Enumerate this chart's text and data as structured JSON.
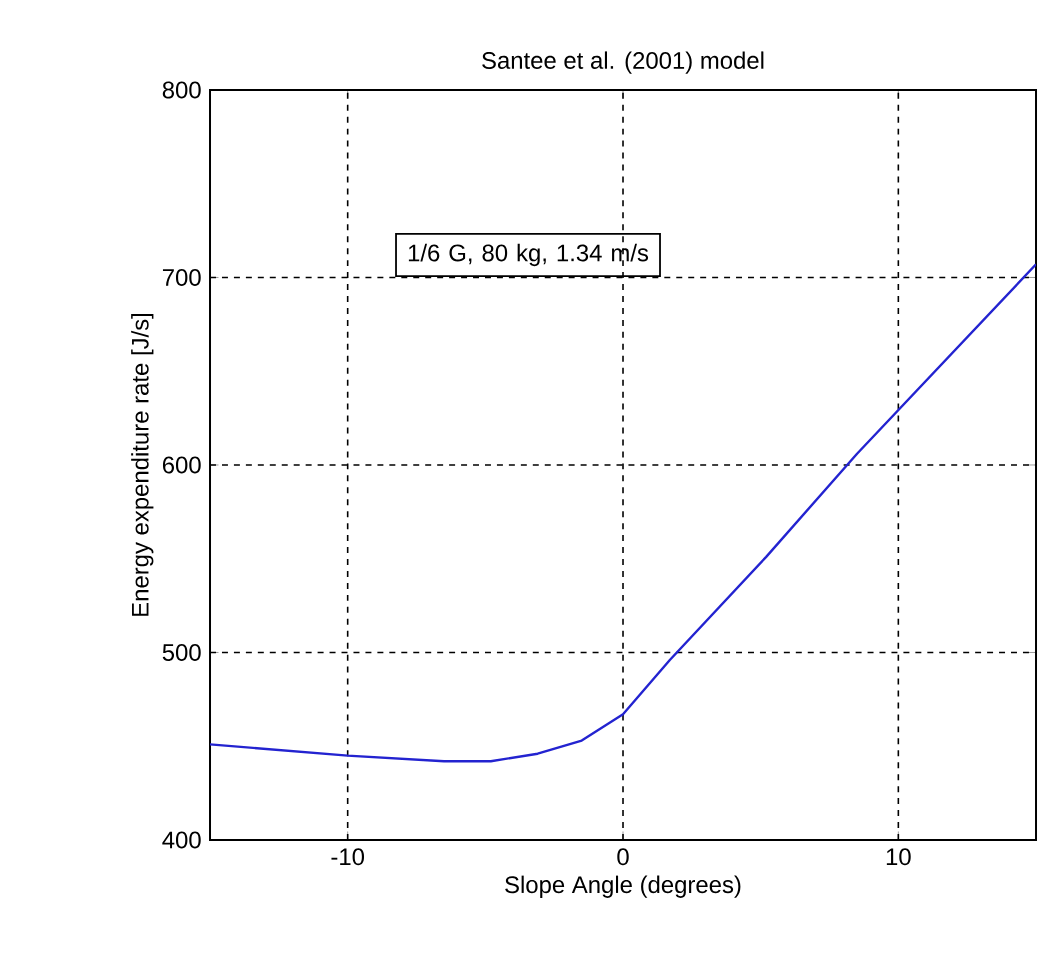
{
  "chart_data": {
    "type": "line",
    "title": "Santee et al. (2001) model",
    "xlabel": "Slope Angle (degrees)",
    "ylabel": "Energy expenditure rate [J/s]",
    "annotations": [
      "1/6 G, 80 kg, 1.34 m/s"
    ],
    "x": [
      -15,
      -10,
      -6.5,
      -4.8,
      -3.1,
      -1.5,
      0,
      1.7,
      5.2,
      8.5,
      15
    ],
    "series": [
      {
        "color": "#2323d0",
        "values": [
          451,
          445,
          442,
          442,
          446,
          453,
          467,
          496,
          551,
          606,
          707
        ]
      }
    ],
    "xlim": [
      -15,
      15
    ],
    "ylim": [
      400,
      800
    ],
    "xticks": [
      -10,
      0,
      10
    ],
    "yticks": [
      400,
      500,
      600,
      700,
      800
    ],
    "grid": true,
    "marker": "none",
    "line_style": "solid"
  }
}
